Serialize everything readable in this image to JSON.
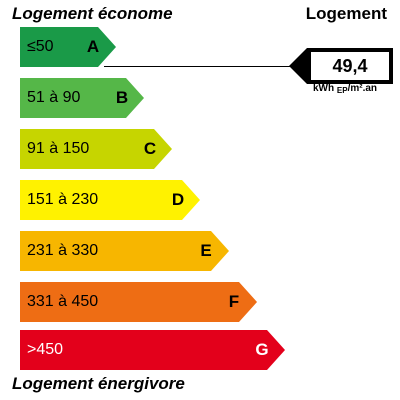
{
  "header": {
    "left_title": "Logement économe",
    "right_title": "Logement"
  },
  "footer": {
    "left_title": "Logement énergivore"
  },
  "classes": [
    {
      "letter": "A",
      "range": "≤50",
      "color": "#1a9a48",
      "text_color": "dark"
    },
    {
      "letter": "B",
      "range": "51 à 90",
      "color": "#55b748",
      "text_color": "dark"
    },
    {
      "letter": "C",
      "range": "91 à 150",
      "color": "#c6d500",
      "text_color": "dark"
    },
    {
      "letter": "D",
      "range": "151 à 230",
      "color": "#fff200",
      "text_color": "dark"
    },
    {
      "letter": "E",
      "range": "231 à 330",
      "color": "#f7b600",
      "text_color": "dark"
    },
    {
      "letter": "F",
      "range": "331 à 450",
      "color": "#ee6d14",
      "text_color": "dark"
    },
    {
      "letter": "G",
      "range": ">450",
      "color": "#e3001b",
      "text_color": "light"
    }
  ],
  "indicator": {
    "value": "49,4",
    "unit_prefix": "kWh",
    "unit_sub": "EP",
    "unit_suffix": "/m².an",
    "class": "A"
  }
}
